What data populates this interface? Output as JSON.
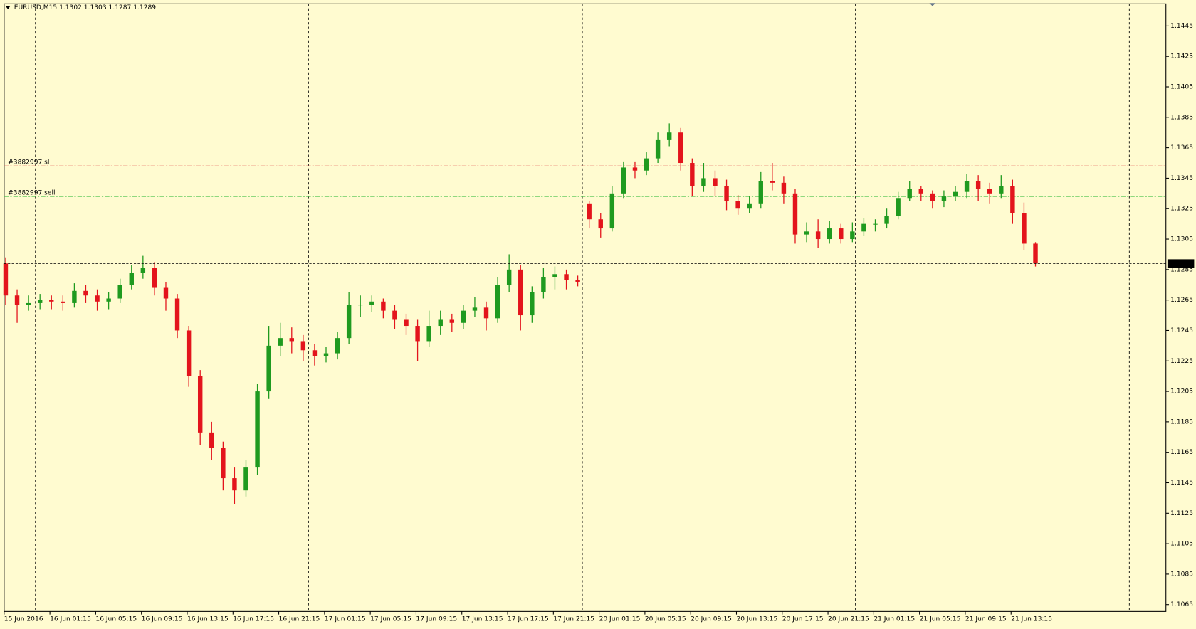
{
  "chart_data": {
    "type": "candlestick",
    "title": "EURUSD,M15  1.1302 1.1303 1.1287 1.1289",
    "up_color": "#1f9a1f",
    "down_color": "#e3141c",
    "open": [
      1.1289,
      1.1268,
      1.1262,
      1.1263,
      1.1265,
      1.1264,
      1.1263,
      1.1271,
      1.1268,
      1.1264,
      1.1266,
      1.1275,
      1.1283,
      1.1286,
      1.1273,
      1.1266,
      1.1245,
      1.1215,
      1.1178,
      1.1168,
      1.1148,
      1.114,
      1.1155,
      1.1205,
      1.1235,
      1.124,
      1.1238,
      1.1232,
      1.1228,
      1.123,
      1.124,
      1.1262,
      1.1262,
      1.1264,
      1.1258,
      1.1252,
      1.1248,
      1.1238,
      1.1248,
      1.1252,
      1.125,
      1.1258,
      1.126,
      1.1253,
      1.1275,
      1.1285,
      1.1255,
      1.127,
      1.128,
      1.1282,
      1.1278,
      1.1328,
      1.1318,
      1.1312,
      1.1335,
      1.1352,
      1.135,
      1.1358,
      1.137,
      1.1375,
      1.1355,
      1.134,
      1.1345,
      1.134,
      1.133,
      1.1325,
      1.1328,
      1.1343,
      1.1342,
      1.1335,
      1.1308,
      1.131,
      1.1305,
      1.1312,
      1.1305,
      1.131,
      1.1315,
      1.1315,
      1.132,
      1.1332,
      1.1338,
      1.1335,
      1.133,
      1.1333,
      1.1336,
      1.1343,
      1.1338,
      1.1335,
      1.134,
      1.1322,
      1.1302
    ],
    "high": [
      1.1293,
      1.1272,
      1.1268,
      1.1269,
      1.1268,
      1.1268,
      1.1276,
      1.1275,
      1.1272,
      1.127,
      1.1279,
      1.1288,
      1.1294,
      1.129,
      1.1277,
      1.1269,
      1.1248,
      1.1219,
      1.1185,
      1.1172,
      1.1155,
      1.116,
      1.121,
      1.1248,
      1.125,
      1.1247,
      1.1242,
      1.1236,
      1.1234,
      1.1244,
      1.127,
      1.1268,
      1.1268,
      1.1266,
      1.1262,
      1.1256,
      1.1252,
      1.1258,
      1.1258,
      1.1256,
      1.1262,
      1.1267,
      1.1264,
      1.128,
      1.1295,
      1.1288,
      1.1274,
      1.1286,
      1.1287,
      1.1285,
      1.1281,
      1.133,
      1.1322,
      1.134,
      1.1356,
      1.1356,
      1.1362,
      1.1375,
      1.1381,
      1.1378,
      1.1358,
      1.1355,
      1.135,
      1.1344,
      1.1334,
      1.1333,
      1.1349,
      1.1355,
      1.1346,
      1.1338,
      1.1316,
      1.1318,
      1.1317,
      1.1315,
      1.1316,
      1.1319,
      1.1318,
      1.1325,
      1.1336,
      1.1343,
      1.134,
      1.1337,
      1.1337,
      1.134,
      1.1348,
      1.1347,
      1.1342,
      1.1347,
      1.1344,
      1.1329,
      1.1303
    ],
    "low": [
      1.1262,
      1.125,
      1.1258,
      1.1259,
      1.1259,
      1.1258,
      1.126,
      1.1263,
      1.1258,
      1.1259,
      1.1263,
      1.1272,
      1.1279,
      1.1268,
      1.1258,
      1.124,
      1.1208,
      1.117,
      1.116,
      1.114,
      1.1131,
      1.1136,
      1.115,
      1.12,
      1.1228,
      1.123,
      1.1225,
      1.1222,
      1.1224,
      1.1226,
      1.1236,
      1.1254,
      1.1257,
      1.1253,
      1.1246,
      1.1242,
      1.1225,
      1.1234,
      1.1242,
      1.1244,
      1.1246,
      1.1254,
      1.1245,
      1.125,
      1.127,
      1.1245,
      1.125,
      1.1266,
      1.1272,
      1.1272,
      1.1274,
      1.1312,
      1.1306,
      1.131,
      1.1332,
      1.1345,
      1.1347,
      1.1355,
      1.1366,
      1.135,
      1.1333,
      1.1336,
      1.1333,
      1.1324,
      1.1321,
      1.1322,
      1.1325,
      1.1337,
      1.1328,
      1.1302,
      1.1303,
      1.1299,
      1.1302,
      1.1302,
      1.1303,
      1.1307,
      1.131,
      1.1312,
      1.1318,
      1.133,
      1.133,
      1.1325,
      1.1326,
      1.133,
      1.1332,
      1.133,
      1.1328,
      1.1332,
      1.1315,
      1.1298,
      1.1287
    ],
    "close": [
      1.1268,
      1.1262,
      1.1263,
      1.1265,
      1.1264,
      1.1263,
      1.1271,
      1.1268,
      1.1264,
      1.1266,
      1.1275,
      1.1283,
      1.1286,
      1.1273,
      1.1266,
      1.1245,
      1.1215,
      1.1178,
      1.1168,
      1.1148,
      1.114,
      1.1155,
      1.1205,
      1.1235,
      1.124,
      1.1238,
      1.1232,
      1.1228,
      1.123,
      1.124,
      1.1262,
      1.1262,
      1.1264,
      1.1258,
      1.1252,
      1.1248,
      1.1238,
      1.1248,
      1.1252,
      1.125,
      1.1258,
      1.126,
      1.1253,
      1.1275,
      1.1285,
      1.1255,
      1.127,
      1.128,
      1.1282,
      1.1278,
      1.1277,
      1.1318,
      1.1312,
      1.1335,
      1.1352,
      1.135,
      1.1358,
      1.137,
      1.1375,
      1.1355,
      1.134,
      1.1345,
      1.134,
      1.133,
      1.1325,
      1.1328,
      1.1343,
      1.1342,
      1.1335,
      1.1308,
      1.131,
      1.1305,
      1.1312,
      1.1305,
      1.131,
      1.1315,
      1.1315,
      1.132,
      1.1332,
      1.1338,
      1.1335,
      1.133,
      1.1333,
      1.1336,
      1.1343,
      1.1338,
      1.1335,
      1.134,
      1.1322,
      1.1302,
      1.1289
    ],
    "x_labels": [
      "15 Jun 2016",
      "16 Jun 01:15",
      "16 Jun 05:15",
      "16 Jun 09:15",
      "16 Jun 13:15",
      "16 Jun 17:15",
      "16 Jun 21:15",
      "17 Jun 01:15",
      "17 Jun 05:15",
      "17 Jun 09:15",
      "17 Jun 13:15",
      "17 Jun 17:15",
      "17 Jun 21:15",
      "20 Jun 01:15",
      "20 Jun 05:15",
      "20 Jun 09:15",
      "20 Jun 13:15",
      "20 Jun 17:15",
      "20 Jun 21:15",
      "21 Jun 01:15",
      "21 Jun 05:15",
      "21 Jun 09:15",
      "21 Jun 13:15"
    ],
    "ylim": [
      1.10605,
      1.14595
    ],
    "yticks": [
      1.1065,
      1.1085,
      1.1105,
      1.1125,
      1.1145,
      1.1165,
      1.1185,
      1.1205,
      1.1225,
      1.1245,
      1.1265,
      1.1285,
      1.1305,
      1.1325,
      1.1345,
      1.1365,
      1.1385,
      1.1405,
      1.1425,
      1.1445
    ],
    "levels": [
      {
        "name": "#3882997 sl",
        "value": 1.1353,
        "color": "#e04848"
      },
      {
        "name": "#3882997 sell",
        "value": 1.1333,
        "color": "#4cc24c"
      }
    ],
    "current_price": 1.1289
  }
}
